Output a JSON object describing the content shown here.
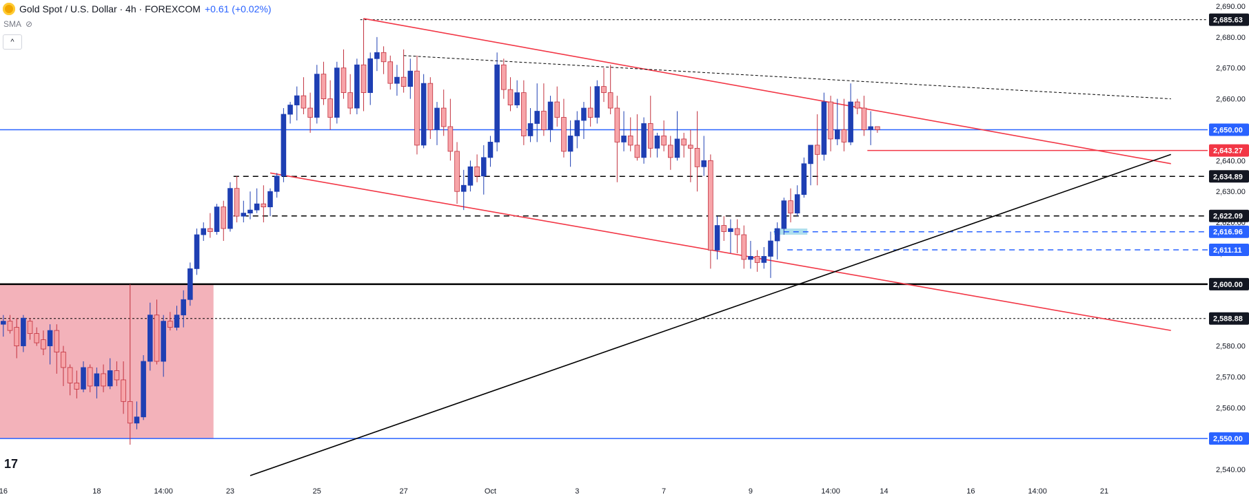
{
  "header": {
    "symbol": "Gold Spot / U.S. Dollar · 4h · FOREXCOM",
    "change": "+0.61 (+0.02%)",
    "indicator": "SMA",
    "collapse_glyph": "^",
    "brand_logo": "tv-logo"
  },
  "colors": {
    "up": "#1e3fb3",
    "down": "#f7a5a9",
    "down_edge": "#c2303d",
    "red_line": "#f23645",
    "blue_line": "#2962ff",
    "black": "#000000",
    "zone": "#f2aab2",
    "cyan_zone": "#9ad7e8"
  },
  "chart_data": {
    "type": "candlestick",
    "y_axis": {
      "ticks": [
        "2,540.00",
        "2,550.00",
        "2,560.00",
        "2,570.00",
        "2,580.00",
        "2,590.00",
        "2,600.00",
        "2,610.00",
        "2,620.00",
        "2,630.00",
        "2,640.00",
        "2,650.00",
        "2,660.00",
        "2,670.00",
        "2,680.00",
        "2,690.00"
      ],
      "tick_values": [
        2540,
        2550,
        2560,
        2570,
        2580,
        2590,
        2600,
        2610,
        2620,
        2630,
        2640,
        2650,
        2660,
        2670,
        2680,
        2690
      ],
      "range": [
        2536,
        2692
      ]
    },
    "x_axis": {
      "labels": [
        "16",
        "18",
        "14:00",
        "23",
        "25",
        "27",
        "Oct",
        "3",
        "7",
        "9",
        "14:00",
        "14",
        "16",
        "14:00",
        "21"
      ],
      "label_bar_index": [
        0,
        14,
        24,
        34,
        47,
        60,
        73,
        86,
        99,
        112,
        124,
        132,
        145,
        155,
        165
      ],
      "bar_count_range": [
        0,
        181
      ]
    },
    "price_labels": [
      {
        "text": "2,685.63",
        "value": 2685.63,
        "style": "black"
      },
      {
        "text": "2,650.00",
        "value": 2650.0,
        "style": "blue"
      },
      {
        "text": "2,643.27",
        "value": 2643.27,
        "style": "red"
      },
      {
        "text": "2,634.89",
        "value": 2634.89,
        "style": "black"
      },
      {
        "text": "2,622.09",
        "value": 2622.09,
        "style": "black"
      },
      {
        "text": "2,616.96",
        "value": 2616.96,
        "style": "blue"
      },
      {
        "text": "2,611.11",
        "value": 2611.11,
        "style": "blue"
      },
      {
        "text": "2,600.00",
        "value": 2600.0,
        "style": "black"
      },
      {
        "text": "2,588.88",
        "value": 2588.88,
        "style": "black"
      },
      {
        "text": "2,550.00",
        "value": 2550.0,
        "style": "blue"
      }
    ],
    "candles": [
      [
        2587,
        2590,
        2583,
        2588
      ],
      [
        2588,
        2590,
        2584,
        2585
      ],
      [
        2586,
        2589,
        2576,
        2580
      ],
      [
        2580,
        2590,
        2578,
        2589
      ],
      [
        2588,
        2589,
        2582,
        2584
      ],
      [
        2584,
        2586,
        2580,
        2581
      ],
      [
        2582,
        2585,
        2577,
        2579
      ],
      [
        2580,
        2587,
        2574,
        2585
      ],
      [
        2585,
        2587,
        2571,
        2578
      ],
      [
        2578,
        2580,
        2567,
        2573
      ],
      [
        2573,
        2574,
        2564,
        2568
      ],
      [
        2568,
        2572,
        2563,
        2566
      ],
      [
        2566,
        2575,
        2565,
        2573
      ],
      [
        2573,
        2574,
        2565,
        2567
      ],
      [
        2567,
        2573,
        2563,
        2571
      ],
      [
        2571,
        2574,
        2565,
        2567
      ],
      [
        2567,
        2576,
        2566,
        2572
      ],
      [
        2572,
        2575,
        2567,
        2569
      ],
      [
        2569,
        2575,
        2558,
        2562
      ],
      [
        2562,
        2600,
        2548,
        2555
      ],
      [
        2555,
        2562,
        2553,
        2557
      ],
      [
        2557,
        2577,
        2556,
        2575
      ],
      [
        2575,
        2594,
        2572,
        2590
      ],
      [
        2590,
        2595,
        2574,
        2575
      ],
      [
        2575,
        2590,
        2570,
        2588
      ],
      [
        2588,
        2591,
        2585,
        2586
      ],
      [
        2586,
        2593,
        2585,
        2590
      ],
      [
        2590,
        2598,
        2586,
        2595
      ],
      [
        2595,
        2607,
        2593,
        2605
      ],
      [
        2605,
        2618,
        2603,
        2616
      ],
      [
        2616,
        2620,
        2614,
        2618
      ],
      [
        2618,
        2623,
        2615,
        2617
      ],
      [
        2617,
        2626,
        2616,
        2625
      ],
      [
        2625,
        2627,
        2614,
        2618
      ],
      [
        2618,
        2633,
        2617,
        2631
      ],
      [
        2631,
        2635,
        2620,
        2622
      ],
      [
        2622,
        2627,
        2620,
        2623
      ],
      [
        2623,
        2630,
        2621,
        2624
      ],
      [
        2624,
        2631,
        2623,
        2626
      ],
      [
        2626,
        2632,
        2620,
        2625
      ],
      [
        2625,
        2631,
        2622,
        2630
      ],
      [
        2630,
        2636,
        2628,
        2635
      ],
      [
        2635,
        2657,
        2633,
        2655
      ],
      [
        2655,
        2659,
        2652,
        2658
      ],
      [
        2658,
        2664,
        2653,
        2661
      ],
      [
        2661,
        2667,
        2655,
        2657
      ],
      [
        2657,
        2662,
        2649,
        2654
      ],
      [
        2654,
        2671,
        2652,
        2668
      ],
      [
        2668,
        2672,
        2658,
        2660
      ],
      [
        2660,
        2666,
        2650,
        2654
      ],
      [
        2654,
        2672,
        2652,
        2670
      ],
      [
        2670,
        2676,
        2660,
        2662
      ],
      [
        2662,
        2668,
        2655,
        2657
      ],
      [
        2657,
        2673,
        2655,
        2671
      ],
      [
        2671,
        2686,
        2656,
        2662
      ],
      [
        2662,
        2675,
        2658,
        2673
      ],
      [
        2673,
        2680,
        2669,
        2675
      ],
      [
        2675,
        2677,
        2668,
        2672
      ],
      [
        2672,
        2674,
        2663,
        2665
      ],
      [
        2665,
        2671,
        2661,
        2667
      ],
      [
        2667,
        2676,
        2662,
        2664
      ],
      [
        2664,
        2673,
        2660,
        2669
      ],
      [
        2669,
        2674,
        2642,
        2645
      ],
      [
        2645,
        2668,
        2644,
        2665
      ],
      [
        2665,
        2667,
        2647,
        2650
      ],
      [
        2650,
        2659,
        2645,
        2657
      ],
      [
        2657,
        2663,
        2648,
        2651
      ],
      [
        2651,
        2660,
        2640,
        2643
      ],
      [
        2643,
        2646,
        2626,
        2630
      ],
      [
        2630,
        2637,
        2624,
        2632
      ],
      [
        2632,
        2640,
        2630,
        2638
      ],
      [
        2638,
        2642,
        2633,
        2635
      ],
      [
        2635,
        2645,
        2629,
        2641
      ],
      [
        2641,
        2648,
        2638,
        2646
      ],
      [
        2646,
        2675,
        2643,
        2671
      ],
      [
        2671,
        2673,
        2660,
        2663
      ],
      [
        2663,
        2667,
        2656,
        2658
      ],
      [
        2658,
        2666,
        2657,
        2662
      ],
      [
        2662,
        2666,
        2645,
        2648
      ],
      [
        2648,
        2657,
        2646,
        2652
      ],
      [
        2652,
        2665,
        2646,
        2656
      ],
      [
        2656,
        2665,
        2648,
        2650
      ],
      [
        2650,
        2661,
        2646,
        2659
      ],
      [
        2659,
        2664,
        2651,
        2654
      ],
      [
        2654,
        2660,
        2641,
        2643
      ],
      [
        2643,
        2653,
        2638,
        2648
      ],
      [
        2648,
        2656,
        2644,
        2653
      ],
      [
        2653,
        2659,
        2647,
        2657
      ],
      [
        2657,
        2664,
        2651,
        2654
      ],
      [
        2654,
        2666,
        2652,
        2664
      ],
      [
        2664,
        2670,
        2659,
        2662
      ],
      [
        2662,
        2671,
        2655,
        2657
      ],
      [
        2657,
        2661,
        2633,
        2646
      ],
      [
        2646,
        2656,
        2643,
        2648
      ],
      [
        2648,
        2654,
        2643,
        2645
      ],
      [
        2645,
        2655,
        2640,
        2641
      ],
      [
        2641,
        2654,
        2639,
        2652
      ],
      [
        2652,
        2661,
        2641,
        2644
      ],
      [
        2644,
        2649,
        2641,
        2648
      ],
      [
        2648,
        2653,
        2643,
        2645
      ],
      [
        2645,
        2648,
        2637,
        2641
      ],
      [
        2641,
        2656,
        2640,
        2647
      ],
      [
        2647,
        2649,
        2641,
        2645
      ],
      [
        2645,
        2650,
        2633,
        2644
      ],
      [
        2644,
        2656,
        2630,
        2638
      ],
      [
        2638,
        2648,
        2635,
        2640
      ],
      [
        2640,
        2642,
        2605,
        2611
      ],
      [
        2611,
        2622,
        2608,
        2619
      ],
      [
        2619,
        2622,
        2614,
        2617
      ],
      [
        2617,
        2621,
        2610,
        2618
      ],
      [
        2618,
        2621,
        2610,
        2616
      ],
      [
        2616,
        2619,
        2605,
        2608
      ],
      [
        2608,
        2614,
        2605,
        2609
      ],
      [
        2609,
        2611,
        2604,
        2607
      ],
      [
        2607,
        2612,
        2605,
        2609
      ],
      [
        2609,
        2617,
        2602,
        2614
      ],
      [
        2614,
        2620,
        2608,
        2618
      ],
      [
        2618,
        2628,
        2616,
        2627
      ],
      [
        2627,
        2631,
        2620,
        2623
      ],
      [
        2623,
        2632,
        2622,
        2629
      ],
      [
        2629,
        2641,
        2628,
        2639
      ],
      [
        2639,
        2645,
        2632,
        2645
      ],
      [
        2645,
        2655,
        2632,
        2642
      ],
      [
        2642,
        2662,
        2640,
        2659
      ],
      [
        2659,
        2661,
        2643,
        2647
      ],
      [
        2647,
        2660,
        2645,
        2650
      ],
      [
        2650,
        2660,
        2643,
        2646
      ],
      [
        2646,
        2665,
        2645,
        2659
      ],
      [
        2659,
        2660,
        2655,
        2657
      ],
      [
        2657,
        2661,
        2648,
        2650
      ],
      [
        2650,
        2656,
        2645,
        2651
      ],
      [
        2651,
        2651,
        2649,
        2650
      ]
    ],
    "candle_x_positions": [
      0,
      1,
      2,
      3,
      4,
      5,
      6,
      7,
      8,
      9,
      10,
      11,
      12,
      13,
      14,
      15,
      16,
      17,
      18,
      19,
      20,
      21,
      22,
      23,
      24,
      25,
      26,
      27,
      28,
      29,
      30,
      31,
      32,
      33,
      34,
      35,
      36,
      37,
      38,
      39,
      40,
      41,
      42,
      43,
      44,
      45,
      46,
      47,
      48,
      49,
      50,
      51,
      52,
      53,
      54,
      55,
      56,
      57,
      58,
      59,
      60,
      61,
      62,
      63,
      64,
      65,
      66,
      67,
      68,
      69,
      70,
      71,
      72,
      73,
      74,
      75,
      76,
      77,
      78,
      79,
      80,
      81,
      82,
      83,
      84,
      85,
      86,
      87,
      88,
      89,
      90,
      91,
      92,
      93,
      94,
      95,
      96,
      97,
      98,
      99,
      100,
      101,
      102,
      103,
      104,
      105,
      106,
      107,
      108,
      109,
      110,
      111,
      112,
      113,
      114,
      115,
      116,
      117,
      118,
      119,
      120,
      121,
      122,
      123,
      124,
      125,
      126,
      127,
      128,
      129,
      130,
      131,
      132,
      133,
      134
    ],
    "horizontal_lines": [
      {
        "value": 2685.63,
        "style": "dotted",
        "color": "black",
        "from_bar": 54
      },
      {
        "value": 2650.0,
        "style": "solid",
        "color": "blue",
        "from_bar": 0
      },
      {
        "value": 2643.27,
        "style": "solid",
        "color": "red",
        "from_bar": 130
      },
      {
        "value": 2634.89,
        "style": "dashed",
        "color": "black",
        "from_bar": 35
      },
      {
        "value": 2622.09,
        "style": "dashed",
        "color": "black",
        "from_bar": 35
      },
      {
        "value": 2616.96,
        "style": "dashed",
        "color": "blue",
        "from_bar": 116
      },
      {
        "value": 2611.11,
        "style": "dashed",
        "color": "blue",
        "from_bar": 118
      },
      {
        "value": 2600.0,
        "style": "solid",
        "color": "black",
        "from_bar": 0
      },
      {
        "value": 2588.88,
        "style": "dotted",
        "color": "black",
        "from_bar": 0
      },
      {
        "value": 2550.0,
        "style": "solid",
        "color": "blue",
        "from_bar": 0
      }
    ],
    "trend_lines": [
      {
        "color": "red",
        "from": [
          54,
          2686
        ],
        "to": [
          175,
          2639
        ]
      },
      {
        "color": "red",
        "from": [
          40,
          2636
        ],
        "to": [
          175,
          2585
        ]
      },
      {
        "color": "black",
        "from": [
          37,
          2538
        ],
        "to": [
          175,
          2642
        ]
      },
      {
        "color": "black",
        "style": "dotted",
        "from": [
          60,
          2674
        ],
        "to": [
          175,
          2660
        ]
      }
    ],
    "zones": [
      {
        "from_bar": 0,
        "to_bar": 32,
        "y_top": 2600,
        "y_bottom": 2550,
        "color": "pink"
      },
      {
        "from_bar": 116,
        "to_bar": 121,
        "y_top": 2618,
        "y_bottom": 2616,
        "color": "cyan"
      }
    ]
  }
}
